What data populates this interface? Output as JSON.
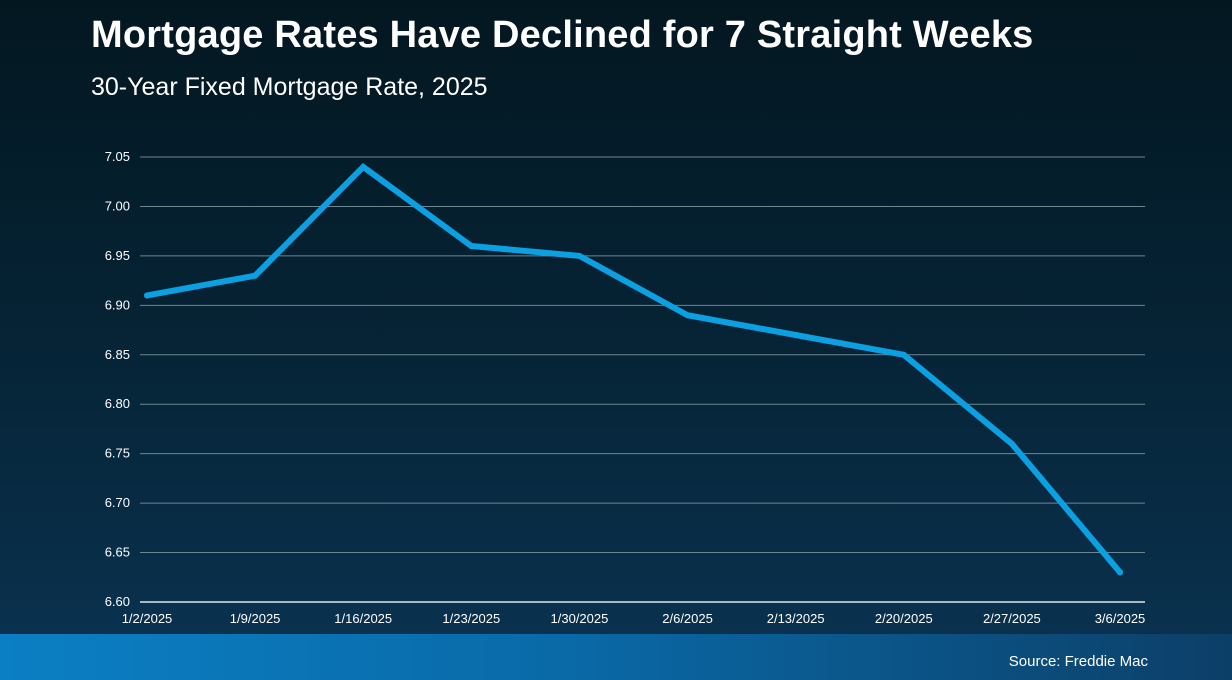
{
  "header": {
    "title": "Mortgage Rates Have Declined for 7 Straight Weeks",
    "subtitle": "30-Year Fixed Mortgage Rate, 2025"
  },
  "footer": {
    "source": "Source: Freddie Mac"
  },
  "colors": {
    "line": "#0aa0e2",
    "grid": "#6f8590",
    "text": "#ffffff"
  },
  "chart_data": {
    "type": "line",
    "title": "Mortgage Rates Have Declined for 7 Straight Weeks",
    "subtitle": "30-Year Fixed Mortgage Rate, 2025",
    "xlabel": "",
    "ylabel": "",
    "categories": [
      "1/2/2025",
      "1/9/2025",
      "1/16/2025",
      "1/23/2025",
      "1/30/2025",
      "2/6/2025",
      "2/13/2025",
      "2/20/2025",
      "2/27/2025",
      "3/6/2025"
    ],
    "series": [
      {
        "values": [
          6.91,
          6.93,
          7.04,
          6.96,
          6.95,
          6.89,
          6.87,
          6.85,
          6.76,
          6.63
        ]
      }
    ],
    "ylim": [
      6.6,
      7.05
    ],
    "yticks": [
      "6.60",
      "6.65",
      "6.70",
      "6.75",
      "6.80",
      "6.85",
      "6.90",
      "6.95",
      "7.00",
      "7.05"
    ],
    "grid": true,
    "legend": "none"
  }
}
